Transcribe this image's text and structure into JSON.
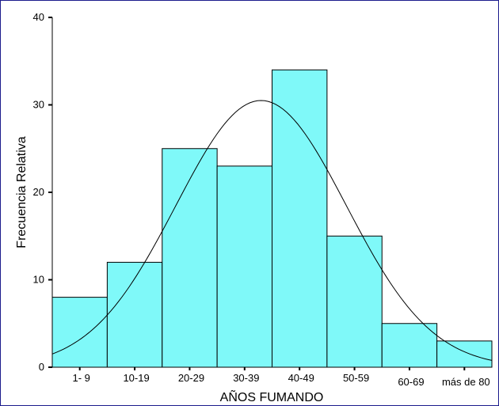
{
  "chart_data": {
    "type": "bar",
    "xlabel": "AÑOS FUMANDO",
    "ylabel": "Frecuencia Relativa",
    "categories": [
      "1- 9",
      "10-19",
      "20-29",
      "30-39",
      "40-49",
      "50-59",
      "60-69",
      "más de 80"
    ],
    "values": [
      8,
      12,
      25,
      23,
      34,
      15,
      5,
      3
    ],
    "ylim": [
      0,
      40
    ],
    "yticks": [
      "0",
      "10",
      "20",
      "30",
      "40"
    ],
    "grid": false,
    "overlay": {
      "type": "normal-curve",
      "peak": 30.5
    },
    "colors": {
      "bar_fill": "#7ff9f9",
      "bar_stroke": "#000000",
      "frame": "#1c1c8c"
    }
  }
}
